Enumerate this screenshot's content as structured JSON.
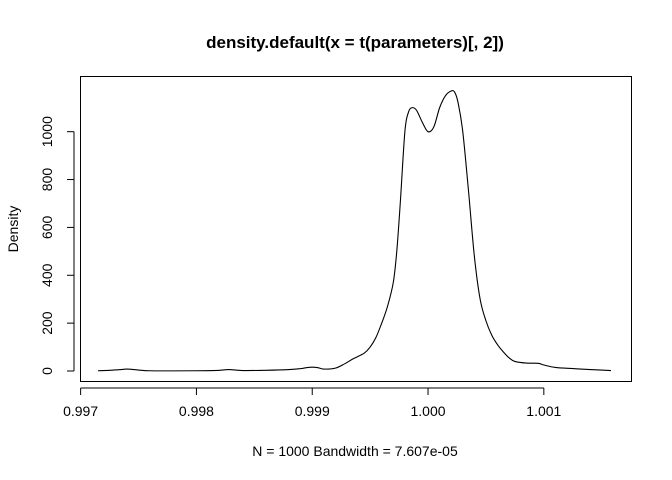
{
  "chart_data": {
    "type": "line",
    "title": "density.default(x = t(parameters)[, 2])",
    "xlabel": "N = 1000   Bandwidth = 7.607e-05",
    "ylabel": "Density",
    "xlim": [
      0.99715,
      1.00158
    ],
    "ylim": [
      0,
      1170
    ],
    "xticks": [
      0.997,
      0.998,
      0.999,
      1.0,
      1.001
    ],
    "xtick_labels": [
      "0.997",
      "0.998",
      "0.999",
      "1.000",
      "1.001"
    ],
    "yticks": [
      0,
      200,
      400,
      600,
      800,
      1000
    ],
    "ytick_labels": [
      "0",
      "200",
      "400",
      "600",
      "800",
      "1000"
    ],
    "grid": false,
    "series": [
      {
        "x": [
          0.99715,
          0.99725,
          0.99735,
          0.9974,
          0.9975,
          0.9976,
          0.9978,
          0.998,
          0.9982,
          0.99828,
          0.9984,
          0.9986,
          0.9988,
          0.9989,
          0.99895,
          0.999,
          0.99905,
          0.9991,
          0.9992,
          0.99928,
          0.99935,
          0.99945,
          0.9995,
          0.99955,
          0.9996,
          0.99965,
          0.9997,
          0.99973,
          0.99976,
          0.9998,
          0.99983,
          0.99986,
          0.9999,
          0.99995,
          1.0,
          1.00005,
          1.0001,
          1.00015,
          1.0002,
          1.00023,
          1.00026,
          1.0003,
          1.00035,
          1.0004,
          1.00045,
          1.0005,
          1.00055,
          1.0006,
          1.00065,
          1.0007,
          1.00075,
          1.00085,
          1.00095,
          1.001,
          1.0011,
          1.00125,
          1.0014,
          1.00158
        ],
        "y": [
          1,
          3,
          6,
          8,
          4,
          1,
          0.5,
          1,
          3,
          6,
          2,
          3,
          6,
          10,
          14,
          16,
          14,
          8,
          12,
          30,
          50,
          75,
          100,
          140,
          200,
          270,
          370,
          500,
          700,
          1000,
          1080,
          1100,
          1090,
          1040,
          1000,
          1020,
          1100,
          1150,
          1170,
          1165,
          1120,
          1000,
          750,
          480,
          300,
          210,
          150,
          110,
          80,
          55,
          40,
          33,
          32,
          25,
          15,
          10,
          6,
          2
        ]
      }
    ]
  }
}
